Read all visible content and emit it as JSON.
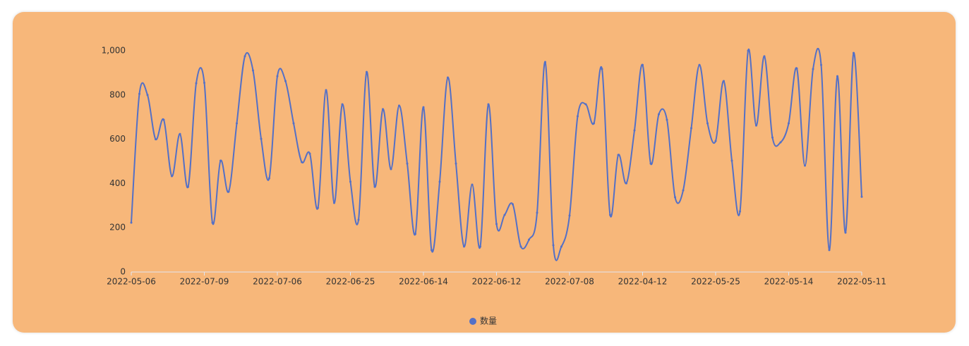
{
  "chart_data": {
    "type": "line",
    "smooth": true,
    "categories": [
      "2022-05-06",
      null,
      null,
      null,
      null,
      null,
      null,
      null,
      null,
      "2022-07-09",
      null,
      null,
      null,
      null,
      null,
      null,
      null,
      null,
      "2022-07-06",
      null,
      null,
      null,
      null,
      null,
      null,
      null,
      null,
      "2022-06-25",
      null,
      null,
      null,
      null,
      null,
      null,
      null,
      null,
      "2022-06-14",
      null,
      null,
      null,
      null,
      null,
      null,
      null,
      null,
      "2022-06-12",
      null,
      null,
      null,
      null,
      null,
      null,
      null,
      null,
      "2022-07-08",
      null,
      null,
      null,
      null,
      null,
      null,
      null,
      null,
      "2022-04-12",
      null,
      null,
      null,
      null,
      null,
      null,
      null,
      null,
      "2022-05-25",
      null,
      null,
      null,
      null,
      null,
      null,
      null,
      null,
      "2022-05-14",
      null,
      null,
      null,
      null,
      null,
      null,
      null,
      null,
      "2022-05-11"
    ],
    "series": [
      {
        "name": "数量",
        "color": "#5470c6",
        "values": [
          223,
          805,
          800,
          600,
          688,
          433,
          624,
          385,
          853,
          855,
          223,
          503,
          363,
          672,
          975,
          911,
          602,
          424,
          885,
          863,
          672,
          497,
          535,
          290,
          822,
          312,
          758,
          408,
          236,
          904,
          385,
          736,
          465,
          752,
          490,
          172,
          745,
          99,
          408,
          879,
          490,
          115,
          395,
          115,
          758,
          217,
          258,
          306,
          115,
          146,
          268,
          949,
          121,
          115,
          255,
          704,
          758,
          672,
          917,
          258,
          529,
          401,
          640,
          936,
          490,
          713,
          688,
          338,
          369,
          650,
          936,
          672,
          592,
          863,
          503,
          274,
          1000,
          662,
          975,
          608,
          586,
          672,
          920,
          481,
          917,
          936,
          99,
          885,
          178,
          990,
          340
        ]
      }
    ],
    "ylim": [
      0,
      1000
    ],
    "yticks": [
      0,
      200,
      400,
      600,
      800,
      {
        "value": 1000,
        "label": "1,000"
      }
    ],
    "legend": "bottom"
  }
}
